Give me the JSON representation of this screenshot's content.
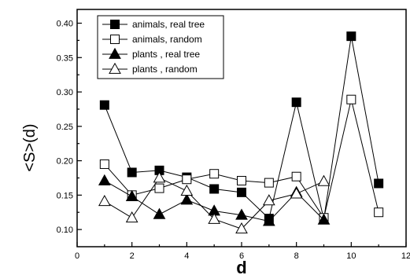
{
  "chart_data": {
    "type": "line",
    "xlabel": "d",
    "ylabel": "<S>(d)",
    "xlim": [
      0,
      12
    ],
    "ylim": [
      0.075,
      0.42
    ],
    "x_ticks": [
      0,
      2,
      4,
      6,
      8,
      10,
      12
    ],
    "y_ticks": [
      0.1,
      0.15,
      0.2,
      0.25,
      0.3,
      0.35,
      0.4
    ],
    "x_tick_labels": [
      "0",
      "2",
      "4",
      "6",
      "8",
      "10",
      "12"
    ],
    "y_tick_labels": [
      "0.10",
      "0.15",
      "0.20",
      "0.25",
      "0.30",
      "0.35",
      "0.40"
    ],
    "legend_position": "top-left",
    "series": [
      {
        "name": "animals, real tree",
        "marker": "square",
        "filled": true,
        "x": [
          1,
          2,
          3,
          4,
          5,
          6,
          7,
          8,
          9,
          10,
          11
        ],
        "values": [
          0.281,
          0.183,
          0.186,
          0.176,
          0.159,
          0.154,
          0.116,
          0.285,
          0.115,
          0.381,
          0.167
        ]
      },
      {
        "name": "animals, random",
        "marker": "square",
        "filled": false,
        "x": [
          1,
          2,
          3,
          4,
          5,
          6,
          7,
          8,
          9,
          10,
          11
        ],
        "values": [
          0.195,
          0.15,
          0.16,
          0.173,
          0.181,
          0.171,
          0.168,
          0.177,
          0.117,
          0.289,
          0.125
        ]
      },
      {
        "name": "plants , real tree",
        "marker": "triangle",
        "filled": true,
        "x": [
          1,
          2,
          3,
          4,
          5,
          6,
          7,
          8,
          9
        ],
        "values": [
          0.171,
          0.148,
          0.122,
          0.143,
          0.127,
          0.121,
          0.112,
          0.154,
          0.114
        ]
      },
      {
        "name": "plants , random",
        "marker": "triangle",
        "filled": false,
        "x": [
          1,
          2,
          3,
          4,
          5,
          6,
          7,
          8,
          9
        ],
        "values": [
          0.141,
          0.117,
          0.175,
          0.156,
          0.115,
          0.101,
          0.142,
          0.152,
          0.17
        ]
      }
    ]
  }
}
